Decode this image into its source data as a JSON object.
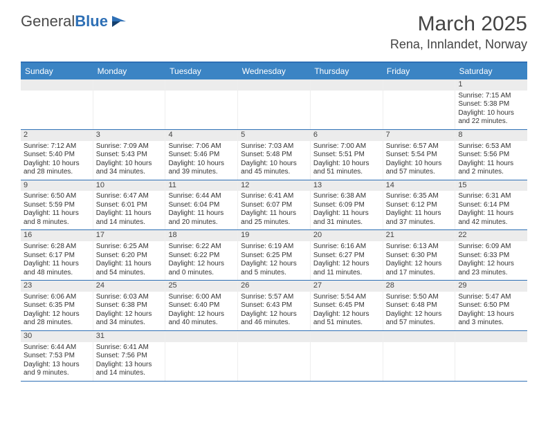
{
  "logo": {
    "text1": "General",
    "text2": "Blue"
  },
  "title": "March 2025",
  "location": "Rena, Innlandet, Norway",
  "weekdays": [
    "Sunday",
    "Monday",
    "Tuesday",
    "Wednesday",
    "Thursday",
    "Friday",
    "Saturday"
  ],
  "colors": {
    "header_bg": "#3b84c4",
    "border": "#2d6fb5",
    "daynum_bg": "#ececec"
  },
  "weeks": [
    [
      {
        "n": "",
        "sunrise": "",
        "sunset": "",
        "daylight": ""
      },
      {
        "n": "",
        "sunrise": "",
        "sunset": "",
        "daylight": ""
      },
      {
        "n": "",
        "sunrise": "",
        "sunset": "",
        "daylight": ""
      },
      {
        "n": "",
        "sunrise": "",
        "sunset": "",
        "daylight": ""
      },
      {
        "n": "",
        "sunrise": "",
        "sunset": "",
        "daylight": ""
      },
      {
        "n": "",
        "sunrise": "",
        "sunset": "",
        "daylight": ""
      },
      {
        "n": "1",
        "sunrise": "Sunrise: 7:15 AM",
        "sunset": "Sunset: 5:38 PM",
        "daylight": "Daylight: 10 hours and 22 minutes."
      }
    ],
    [
      {
        "n": "2",
        "sunrise": "Sunrise: 7:12 AM",
        "sunset": "Sunset: 5:40 PM",
        "daylight": "Daylight: 10 hours and 28 minutes."
      },
      {
        "n": "3",
        "sunrise": "Sunrise: 7:09 AM",
        "sunset": "Sunset: 5:43 PM",
        "daylight": "Daylight: 10 hours and 34 minutes."
      },
      {
        "n": "4",
        "sunrise": "Sunrise: 7:06 AM",
        "sunset": "Sunset: 5:46 PM",
        "daylight": "Daylight: 10 hours and 39 minutes."
      },
      {
        "n": "5",
        "sunrise": "Sunrise: 7:03 AM",
        "sunset": "Sunset: 5:48 PM",
        "daylight": "Daylight: 10 hours and 45 minutes."
      },
      {
        "n": "6",
        "sunrise": "Sunrise: 7:00 AM",
        "sunset": "Sunset: 5:51 PM",
        "daylight": "Daylight: 10 hours and 51 minutes."
      },
      {
        "n": "7",
        "sunrise": "Sunrise: 6:57 AM",
        "sunset": "Sunset: 5:54 PM",
        "daylight": "Daylight: 10 hours and 57 minutes."
      },
      {
        "n": "8",
        "sunrise": "Sunrise: 6:53 AM",
        "sunset": "Sunset: 5:56 PM",
        "daylight": "Daylight: 11 hours and 2 minutes."
      }
    ],
    [
      {
        "n": "9",
        "sunrise": "Sunrise: 6:50 AM",
        "sunset": "Sunset: 5:59 PM",
        "daylight": "Daylight: 11 hours and 8 minutes."
      },
      {
        "n": "10",
        "sunrise": "Sunrise: 6:47 AM",
        "sunset": "Sunset: 6:01 PM",
        "daylight": "Daylight: 11 hours and 14 minutes."
      },
      {
        "n": "11",
        "sunrise": "Sunrise: 6:44 AM",
        "sunset": "Sunset: 6:04 PM",
        "daylight": "Daylight: 11 hours and 20 minutes."
      },
      {
        "n": "12",
        "sunrise": "Sunrise: 6:41 AM",
        "sunset": "Sunset: 6:07 PM",
        "daylight": "Daylight: 11 hours and 25 minutes."
      },
      {
        "n": "13",
        "sunrise": "Sunrise: 6:38 AM",
        "sunset": "Sunset: 6:09 PM",
        "daylight": "Daylight: 11 hours and 31 minutes."
      },
      {
        "n": "14",
        "sunrise": "Sunrise: 6:35 AM",
        "sunset": "Sunset: 6:12 PM",
        "daylight": "Daylight: 11 hours and 37 minutes."
      },
      {
        "n": "15",
        "sunrise": "Sunrise: 6:31 AM",
        "sunset": "Sunset: 6:14 PM",
        "daylight": "Daylight: 11 hours and 42 minutes."
      }
    ],
    [
      {
        "n": "16",
        "sunrise": "Sunrise: 6:28 AM",
        "sunset": "Sunset: 6:17 PM",
        "daylight": "Daylight: 11 hours and 48 minutes."
      },
      {
        "n": "17",
        "sunrise": "Sunrise: 6:25 AM",
        "sunset": "Sunset: 6:20 PM",
        "daylight": "Daylight: 11 hours and 54 minutes."
      },
      {
        "n": "18",
        "sunrise": "Sunrise: 6:22 AM",
        "sunset": "Sunset: 6:22 PM",
        "daylight": "Daylight: 12 hours and 0 minutes."
      },
      {
        "n": "19",
        "sunrise": "Sunrise: 6:19 AM",
        "sunset": "Sunset: 6:25 PM",
        "daylight": "Daylight: 12 hours and 5 minutes."
      },
      {
        "n": "20",
        "sunrise": "Sunrise: 6:16 AM",
        "sunset": "Sunset: 6:27 PM",
        "daylight": "Daylight: 12 hours and 11 minutes."
      },
      {
        "n": "21",
        "sunrise": "Sunrise: 6:13 AM",
        "sunset": "Sunset: 6:30 PM",
        "daylight": "Daylight: 12 hours and 17 minutes."
      },
      {
        "n": "22",
        "sunrise": "Sunrise: 6:09 AM",
        "sunset": "Sunset: 6:33 PM",
        "daylight": "Daylight: 12 hours and 23 minutes."
      }
    ],
    [
      {
        "n": "23",
        "sunrise": "Sunrise: 6:06 AM",
        "sunset": "Sunset: 6:35 PM",
        "daylight": "Daylight: 12 hours and 28 minutes."
      },
      {
        "n": "24",
        "sunrise": "Sunrise: 6:03 AM",
        "sunset": "Sunset: 6:38 PM",
        "daylight": "Daylight: 12 hours and 34 minutes."
      },
      {
        "n": "25",
        "sunrise": "Sunrise: 6:00 AM",
        "sunset": "Sunset: 6:40 PM",
        "daylight": "Daylight: 12 hours and 40 minutes."
      },
      {
        "n": "26",
        "sunrise": "Sunrise: 5:57 AM",
        "sunset": "Sunset: 6:43 PM",
        "daylight": "Daylight: 12 hours and 46 minutes."
      },
      {
        "n": "27",
        "sunrise": "Sunrise: 5:54 AM",
        "sunset": "Sunset: 6:45 PM",
        "daylight": "Daylight: 12 hours and 51 minutes."
      },
      {
        "n": "28",
        "sunrise": "Sunrise: 5:50 AM",
        "sunset": "Sunset: 6:48 PM",
        "daylight": "Daylight: 12 hours and 57 minutes."
      },
      {
        "n": "29",
        "sunrise": "Sunrise: 5:47 AM",
        "sunset": "Sunset: 6:50 PM",
        "daylight": "Daylight: 13 hours and 3 minutes."
      }
    ],
    [
      {
        "n": "30",
        "sunrise": "Sunrise: 6:44 AM",
        "sunset": "Sunset: 7:53 PM",
        "daylight": "Daylight: 13 hours and 9 minutes."
      },
      {
        "n": "31",
        "sunrise": "Sunrise: 6:41 AM",
        "sunset": "Sunset: 7:56 PM",
        "daylight": "Daylight: 13 hours and 14 minutes."
      },
      {
        "n": "",
        "sunrise": "",
        "sunset": "",
        "daylight": ""
      },
      {
        "n": "",
        "sunrise": "",
        "sunset": "",
        "daylight": ""
      },
      {
        "n": "",
        "sunrise": "",
        "sunset": "",
        "daylight": ""
      },
      {
        "n": "",
        "sunrise": "",
        "sunset": "",
        "daylight": ""
      },
      {
        "n": "",
        "sunrise": "",
        "sunset": "",
        "daylight": ""
      }
    ]
  ]
}
